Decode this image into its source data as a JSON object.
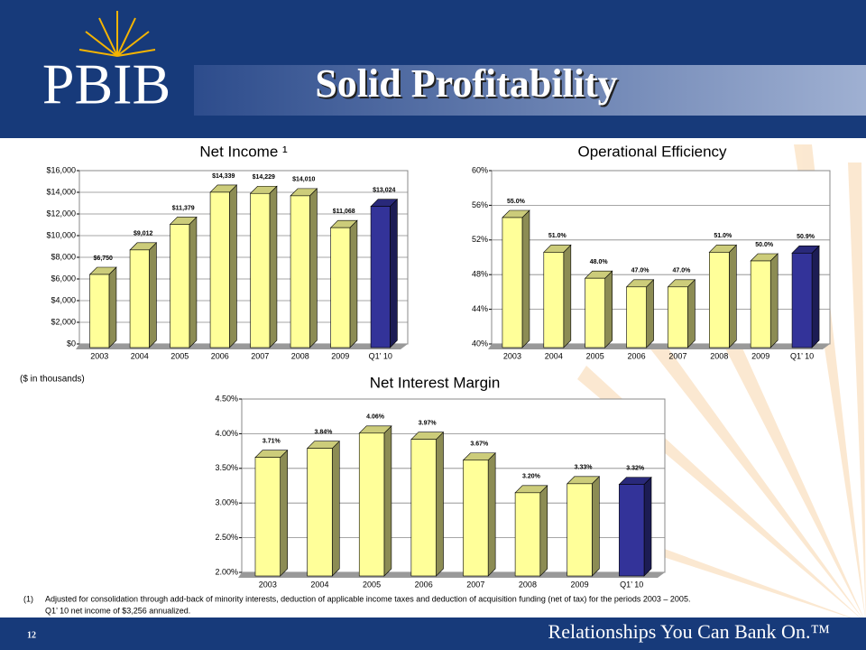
{
  "header": {
    "logo": "PBIB",
    "title": "Solid Profitability"
  },
  "chart_data": [
    {
      "type": "bar",
      "title": "Net Income ¹",
      "categories": [
        "2003",
        "2004",
        "2005",
        "2006",
        "2007",
        "2008",
        "2009",
        "Q1’ 10"
      ],
      "values": [
        6750,
        9012,
        11379,
        14339,
        14229,
        14010,
        11068,
        13024
      ],
      "value_labels": [
        "$6,750",
        "$9,012",
        "$11,379",
        "$14,339",
        "$14,229",
        "$14,010",
        "$11,068",
        "$13,024"
      ],
      "colors": [
        "#ffff99",
        "#ffff99",
        "#ffff99",
        "#ffff99",
        "#ffff99",
        "#ffff99",
        "#ffff99",
        "#333399"
      ],
      "ylim": [
        0,
        16000
      ],
      "yticks": [
        {
          "value": 0,
          "label": "$0"
        },
        {
          "value": 2000,
          "label": "$2,000"
        },
        {
          "value": 4000,
          "label": "$4,000"
        },
        {
          "value": 6000,
          "label": "$6,000"
        },
        {
          "value": 8000,
          "label": "$8,000"
        },
        {
          "value": 10000,
          "label": "$10,000"
        },
        {
          "value": 12000,
          "label": "$12,000"
        },
        {
          "value": 14000,
          "label": "$14,000"
        },
        {
          "value": 16000,
          "label": "$16,000"
        }
      ],
      "grid": true
    },
    {
      "type": "bar",
      "title": "Operational Efficiency",
      "categories": [
        "2003",
        "2004",
        "2005",
        "2006",
        "2007",
        "2008",
        "2009",
        "Q1’ 10"
      ],
      "values": [
        55.0,
        51.0,
        48.0,
        47.0,
        47.0,
        51.0,
        50.0,
        50.9
      ],
      "value_labels": [
        "55.0%",
        "51.0%",
        "48.0%",
        "47.0%",
        "47.0%",
        "51.0%",
        "50.0%",
        "50.9%"
      ],
      "colors": [
        "#ffff99",
        "#ffff99",
        "#ffff99",
        "#ffff99",
        "#ffff99",
        "#ffff99",
        "#ffff99",
        "#333399"
      ],
      "ylim": [
        40,
        60
      ],
      "yticks": [
        {
          "value": 40,
          "label": "40%"
        },
        {
          "value": 44,
          "label": "44%"
        },
        {
          "value": 48,
          "label": "48%"
        },
        {
          "value": 52,
          "label": "52%"
        },
        {
          "value": 56,
          "label": "56%"
        },
        {
          "value": 60,
          "label": "60%"
        }
      ],
      "grid": true
    },
    {
      "type": "bar",
      "title": "Net Interest Margin",
      "categories": [
        "2003",
        "2004",
        "2005",
        "2006",
        "2007",
        "2008",
        "2009",
        "Q1’ 10"
      ],
      "values": [
        3.71,
        3.84,
        4.06,
        3.97,
        3.67,
        3.2,
        3.33,
        3.32
      ],
      "value_labels": [
        "3.71%",
        "3.84%",
        "4.06%",
        "3.97%",
        "3.67%",
        "3.20%",
        "3.33%",
        "3.32%"
      ],
      "colors": [
        "#ffff99",
        "#ffff99",
        "#ffff99",
        "#ffff99",
        "#ffff99",
        "#ffff99",
        "#ffff99",
        "#333399"
      ],
      "ylim": [
        2,
        4.5
      ],
      "yticks": [
        {
          "value": 2,
          "label": "2.00%"
        },
        {
          "value": 2.5,
          "label": "2.50%"
        },
        {
          "value": 3,
          "label": "3.00%"
        },
        {
          "value": 3.5,
          "label": "3.50%"
        },
        {
          "value": 4,
          "label": "4.00%"
        },
        {
          "value": 4.5,
          "label": "4.50%"
        }
      ],
      "grid": true
    }
  ],
  "note": "($ in thousands)",
  "footnote": {
    "marker": "(1)",
    "lines": [
      "Adjusted for consolidation through add-back of minority interests, deduction of applicable income taxes and deduction of acquisition funding (net of tax) for the periods 2003 – 2005.",
      "Q1’ 10 net income of $3,256 annualized."
    ]
  },
  "footer": {
    "page": "12",
    "tagline": "Relationships You Can Bank On.™"
  }
}
